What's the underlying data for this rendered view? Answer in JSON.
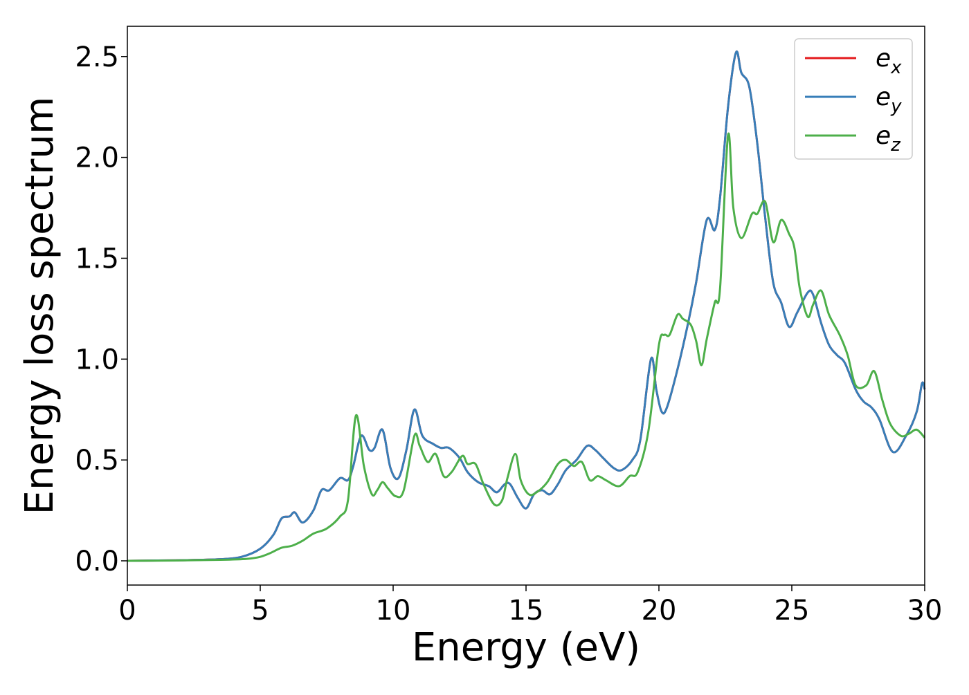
{
  "chart_data": {
    "type": "line",
    "xlabel": "Energy (eV)",
    "ylabel": "Energy loss spectrum",
    "xlim": [
      0,
      30
    ],
    "ylim": [
      -0.12,
      2.65
    ],
    "xticks": [
      "0",
      "5",
      "10",
      "15",
      "20",
      "25",
      "30"
    ],
    "yticks": [
      "0.0",
      "0.5",
      "1.0",
      "1.5",
      "2.0",
      "2.5"
    ],
    "xtick_values": [
      0,
      5,
      10,
      15,
      20,
      25,
      30
    ],
    "ytick_values": [
      0.0,
      0.5,
      1.0,
      1.5,
      2.0,
      2.5
    ],
    "grid": false,
    "legend_position": "top-right",
    "legend": [
      {
        "base": "e",
        "sub": "x",
        "color": "#e41a1c"
      },
      {
        "base": "e",
        "sub": "y",
        "color": "#377eb8"
      },
      {
        "base": "e",
        "sub": "z",
        "color": "#4daf4a"
      }
    ],
    "series": [
      {
        "name": "e_x",
        "color": "#e41a1c",
        "points": [
          [
            0,
            0
          ],
          [
            2,
            0.003
          ],
          [
            3.5,
            0.008
          ],
          [
            4.3,
            0.02
          ],
          [
            5,
            0.06
          ],
          [
            5.5,
            0.13
          ],
          [
            5.8,
            0.21
          ],
          [
            6.1,
            0.22
          ],
          [
            6.3,
            0.24
          ],
          [
            6.6,
            0.19
          ],
          [
            7,
            0.25
          ],
          [
            7.3,
            0.35
          ],
          [
            7.6,
            0.35
          ],
          [
            8,
            0.41
          ],
          [
            8.3,
            0.4
          ],
          [
            8.5,
            0.47
          ],
          [
            8.8,
            0.62
          ],
          [
            9.1,
            0.55
          ],
          [
            9.3,
            0.56
          ],
          [
            9.6,
            0.65
          ],
          [
            9.9,
            0.46
          ],
          [
            10.2,
            0.41
          ],
          [
            10.5,
            0.55
          ],
          [
            10.8,
            0.75
          ],
          [
            11.1,
            0.62
          ],
          [
            11.5,
            0.58
          ],
          [
            11.8,
            0.56
          ],
          [
            12.1,
            0.56
          ],
          [
            12.5,
            0.51
          ],
          [
            12.8,
            0.44
          ],
          [
            13.2,
            0.39
          ],
          [
            13.6,
            0.37
          ],
          [
            13.9,
            0.34
          ],
          [
            14.2,
            0.38
          ],
          [
            14.4,
            0.38
          ],
          [
            14.7,
            0.31
          ],
          [
            15,
            0.26
          ],
          [
            15.3,
            0.33
          ],
          [
            15.6,
            0.35
          ],
          [
            15.9,
            0.33
          ],
          [
            16.2,
            0.38
          ],
          [
            16.5,
            0.45
          ],
          [
            16.9,
            0.5
          ],
          [
            17.3,
            0.57
          ],
          [
            17.6,
            0.55
          ],
          [
            17.9,
            0.51
          ],
          [
            18.3,
            0.46
          ],
          [
            18.6,
            0.45
          ],
          [
            19,
            0.5
          ],
          [
            19.3,
            0.6
          ],
          [
            19.7,
            1.0
          ],
          [
            19.9,
            0.85
          ],
          [
            20.1,
            0.74
          ],
          [
            20.3,
            0.76
          ],
          [
            20.7,
            0.95
          ],
          [
            21.1,
            1.18
          ],
          [
            21.4,
            1.38
          ],
          [
            21.8,
            1.69
          ],
          [
            22.1,
            1.64
          ],
          [
            22.3,
            1.8
          ],
          [
            22.6,
            2.25
          ],
          [
            22.9,
            2.52
          ],
          [
            23.1,
            2.42
          ],
          [
            23.4,
            2.35
          ],
          [
            23.7,
            2.07
          ],
          [
            24,
            1.7
          ],
          [
            24.3,
            1.38
          ],
          [
            24.6,
            1.28
          ],
          [
            24.9,
            1.16
          ],
          [
            25.2,
            1.23
          ],
          [
            25.6,
            1.33
          ],
          [
            25.8,
            1.32
          ],
          [
            26.1,
            1.18
          ],
          [
            26.4,
            1.07
          ],
          [
            26.7,
            1.02
          ],
          [
            27,
            0.98
          ],
          [
            27.4,
            0.85
          ],
          [
            27.7,
            0.79
          ],
          [
            28,
            0.76
          ],
          [
            28.3,
            0.7
          ],
          [
            28.8,
            0.54
          ],
          [
            29.3,
            0.62
          ],
          [
            29.7,
            0.74
          ],
          [
            29.9,
            0.88
          ],
          [
            30,
            0.85
          ]
        ]
      },
      {
        "name": "e_y",
        "color": "#377eb8",
        "points": [
          [
            0,
            0
          ],
          [
            2,
            0.003
          ],
          [
            3.5,
            0.008
          ],
          [
            4.3,
            0.02
          ],
          [
            5,
            0.06
          ],
          [
            5.5,
            0.13
          ],
          [
            5.8,
            0.21
          ],
          [
            6.1,
            0.22
          ],
          [
            6.3,
            0.24
          ],
          [
            6.6,
            0.19
          ],
          [
            7,
            0.25
          ],
          [
            7.3,
            0.35
          ],
          [
            7.6,
            0.35
          ],
          [
            8,
            0.41
          ],
          [
            8.3,
            0.4
          ],
          [
            8.5,
            0.47
          ],
          [
            8.8,
            0.62
          ],
          [
            9.1,
            0.55
          ],
          [
            9.3,
            0.56
          ],
          [
            9.6,
            0.65
          ],
          [
            9.9,
            0.46
          ],
          [
            10.2,
            0.41
          ],
          [
            10.5,
            0.55
          ],
          [
            10.8,
            0.75
          ],
          [
            11.1,
            0.62
          ],
          [
            11.5,
            0.58
          ],
          [
            11.8,
            0.56
          ],
          [
            12.1,
            0.56
          ],
          [
            12.5,
            0.51
          ],
          [
            12.8,
            0.44
          ],
          [
            13.2,
            0.39
          ],
          [
            13.6,
            0.37
          ],
          [
            13.9,
            0.34
          ],
          [
            14.2,
            0.38
          ],
          [
            14.4,
            0.38
          ],
          [
            14.7,
            0.31
          ],
          [
            15,
            0.26
          ],
          [
            15.3,
            0.33
          ],
          [
            15.6,
            0.35
          ],
          [
            15.9,
            0.33
          ],
          [
            16.2,
            0.38
          ],
          [
            16.5,
            0.45
          ],
          [
            16.9,
            0.5
          ],
          [
            17.3,
            0.57
          ],
          [
            17.6,
            0.55
          ],
          [
            17.9,
            0.51
          ],
          [
            18.3,
            0.46
          ],
          [
            18.6,
            0.45
          ],
          [
            19,
            0.5
          ],
          [
            19.3,
            0.6
          ],
          [
            19.7,
            1.0
          ],
          [
            19.9,
            0.85
          ],
          [
            20.1,
            0.74
          ],
          [
            20.3,
            0.76
          ],
          [
            20.7,
            0.95
          ],
          [
            21.1,
            1.18
          ],
          [
            21.4,
            1.38
          ],
          [
            21.8,
            1.69
          ],
          [
            22.1,
            1.64
          ],
          [
            22.3,
            1.8
          ],
          [
            22.6,
            2.25
          ],
          [
            22.9,
            2.52
          ],
          [
            23.1,
            2.42
          ],
          [
            23.4,
            2.35
          ],
          [
            23.7,
            2.07
          ],
          [
            24,
            1.7
          ],
          [
            24.3,
            1.38
          ],
          [
            24.6,
            1.28
          ],
          [
            24.9,
            1.16
          ],
          [
            25.2,
            1.23
          ],
          [
            25.6,
            1.33
          ],
          [
            25.8,
            1.32
          ],
          [
            26.1,
            1.18
          ],
          [
            26.4,
            1.07
          ],
          [
            26.7,
            1.02
          ],
          [
            27,
            0.98
          ],
          [
            27.4,
            0.85
          ],
          [
            27.7,
            0.79
          ],
          [
            28,
            0.76
          ],
          [
            28.3,
            0.7
          ],
          [
            28.8,
            0.54
          ],
          [
            29.3,
            0.62
          ],
          [
            29.7,
            0.74
          ],
          [
            29.9,
            0.88
          ],
          [
            30,
            0.85
          ]
        ]
      },
      {
        "name": "e_z",
        "color": "#4daf4a",
        "points": [
          [
            0,
            0
          ],
          [
            2,
            0.002
          ],
          [
            3.5,
            0.005
          ],
          [
            4.5,
            0.01
          ],
          [
            5,
            0.02
          ],
          [
            5.4,
            0.04
          ],
          [
            5.8,
            0.065
          ],
          [
            6.2,
            0.075
          ],
          [
            6.6,
            0.1
          ],
          [
            7,
            0.135
          ],
          [
            7.5,
            0.16
          ],
          [
            8,
            0.22
          ],
          [
            8.3,
            0.3
          ],
          [
            8.6,
            0.72
          ],
          [
            8.9,
            0.47
          ],
          [
            9.2,
            0.33
          ],
          [
            9.4,
            0.35
          ],
          [
            9.6,
            0.39
          ],
          [
            9.8,
            0.36
          ],
          [
            10.1,
            0.32
          ],
          [
            10.4,
            0.35
          ],
          [
            10.8,
            0.62
          ],
          [
            11,
            0.57
          ],
          [
            11.3,
            0.49
          ],
          [
            11.6,
            0.53
          ],
          [
            11.9,
            0.42
          ],
          [
            12.2,
            0.44
          ],
          [
            12.6,
            0.52
          ],
          [
            12.8,
            0.48
          ],
          [
            13.1,
            0.48
          ],
          [
            13.4,
            0.38
          ],
          [
            13.8,
            0.28
          ],
          [
            14.1,
            0.3
          ],
          [
            14.3,
            0.41
          ],
          [
            14.6,
            0.53
          ],
          [
            14.8,
            0.4
          ],
          [
            15.1,
            0.33
          ],
          [
            15.4,
            0.34
          ],
          [
            15.8,
            0.39
          ],
          [
            16.2,
            0.48
          ],
          [
            16.5,
            0.5
          ],
          [
            16.8,
            0.47
          ],
          [
            17.1,
            0.49
          ],
          [
            17.4,
            0.4
          ],
          [
            17.7,
            0.42
          ],
          [
            18,
            0.4
          ],
          [
            18.5,
            0.37
          ],
          [
            18.9,
            0.42
          ],
          [
            19.2,
            0.44
          ],
          [
            19.6,
            0.64
          ],
          [
            20,
            1.07
          ],
          [
            20.2,
            1.12
          ],
          [
            20.4,
            1.12
          ],
          [
            20.7,
            1.22
          ],
          [
            20.9,
            1.2
          ],
          [
            21.2,
            1.17
          ],
          [
            21.4,
            1.09
          ],
          [
            21.6,
            0.97
          ],
          [
            21.8,
            1.1
          ],
          [
            22.1,
            1.28
          ],
          [
            22.3,
            1.35
          ],
          [
            22.6,
            2.11
          ],
          [
            22.8,
            1.75
          ],
          [
            23.1,
            1.6
          ],
          [
            23.5,
            1.72
          ],
          [
            23.7,
            1.72
          ],
          [
            24,
            1.78
          ],
          [
            24.3,
            1.58
          ],
          [
            24.6,
            1.69
          ],
          [
            24.9,
            1.62
          ],
          [
            25.1,
            1.55
          ],
          [
            25.3,
            1.35
          ],
          [
            25.6,
            1.21
          ],
          [
            25.8,
            1.27
          ],
          [
            26.1,
            1.34
          ],
          [
            26.4,
            1.22
          ],
          [
            26.8,
            1.12
          ],
          [
            27.1,
            1.02
          ],
          [
            27.4,
            0.87
          ],
          [
            27.8,
            0.87
          ],
          [
            28.1,
            0.94
          ],
          [
            28.4,
            0.8
          ],
          [
            28.7,
            0.68
          ],
          [
            29.1,
            0.62
          ],
          [
            29.4,
            0.63
          ],
          [
            29.7,
            0.65
          ],
          [
            30,
            0.61
          ]
        ]
      }
    ]
  }
}
